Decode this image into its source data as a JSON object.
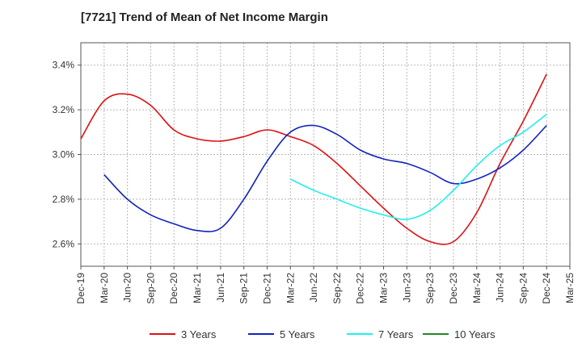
{
  "chart_data": {
    "type": "line",
    "title": "[7721]  Trend of Mean of Net Income Margin",
    "xlabel": "",
    "ylabel": "",
    "x_ticks": [
      "Dec-19",
      "Mar-20",
      "Jun-20",
      "Sep-20",
      "Dec-20",
      "Mar-21",
      "Jun-21",
      "Sep-21",
      "Dec-21",
      "Mar-22",
      "Jun-22",
      "Sep-22",
      "Dec-22",
      "Mar-23",
      "Jun-23",
      "Sep-23",
      "Dec-23",
      "Mar-24",
      "Jun-24",
      "Sep-24",
      "Dec-24",
      "Mar-25"
    ],
    "y_ticks": [
      "2.6%",
      "2.8%",
      "3.0%",
      "3.2%",
      "3.4%"
    ],
    "ylim": [
      2.5,
      3.5
    ],
    "grid": true,
    "legend_position": "bottom",
    "series": [
      {
        "name": "3 Years",
        "color": "#dd1111",
        "x": [
          "Dec-19",
          "Mar-20",
          "Jun-20",
          "Sep-20",
          "Dec-20",
          "Mar-21",
          "Jun-21",
          "Sep-21",
          "Dec-21",
          "Mar-22",
          "Jun-22",
          "Sep-22",
          "Dec-22",
          "Mar-23",
          "Jun-23",
          "Sep-23",
          "Dec-23",
          "Mar-24",
          "Jun-24",
          "Sep-24",
          "Dec-24"
        ],
        "values": [
          3.07,
          3.24,
          3.27,
          3.22,
          3.11,
          3.07,
          3.06,
          3.08,
          3.11,
          3.08,
          3.04,
          2.96,
          2.86,
          2.76,
          2.67,
          2.61,
          2.61,
          2.74,
          2.96,
          3.15,
          3.36
        ]
      },
      {
        "name": "5 Years",
        "color": "#1122bb",
        "x": [
          "Dec-19",
          "Mar-20",
          "Jun-20",
          "Sep-20",
          "Dec-20",
          "Mar-21",
          "Jun-21",
          "Sep-21",
          "Dec-21",
          "Mar-22",
          "Jun-22",
          "Sep-22",
          "Dec-22",
          "Mar-23",
          "Jun-23",
          "Sep-23",
          "Dec-23",
          "Mar-24",
          "Jun-24",
          "Sep-24",
          "Dec-24"
        ],
        "values": [
          null,
          2.91,
          2.8,
          2.73,
          2.69,
          2.66,
          2.67,
          2.8,
          2.97,
          3.1,
          3.13,
          3.09,
          3.02,
          2.98,
          2.96,
          2.92,
          2.87,
          2.89,
          2.94,
          3.02,
          3.13
        ]
      },
      {
        "name": "7 Years",
        "color": "#22eeee",
        "x": [
          "Dec-19",
          "Mar-20",
          "Jun-20",
          "Sep-20",
          "Dec-20",
          "Mar-21",
          "Jun-21",
          "Sep-21",
          "Dec-21",
          "Mar-22",
          "Jun-22",
          "Sep-22",
          "Dec-22",
          "Mar-23",
          "Jun-23",
          "Sep-23",
          "Dec-23",
          "Mar-24",
          "Jun-24",
          "Sep-24",
          "Dec-24"
        ],
        "values": [
          null,
          null,
          null,
          null,
          null,
          null,
          null,
          null,
          null,
          2.89,
          2.84,
          2.8,
          2.76,
          2.73,
          2.71,
          2.75,
          2.84,
          2.95,
          3.04,
          3.1,
          3.18
        ]
      },
      {
        "name": "10 Years",
        "color": "#228822",
        "x": [],
        "values": []
      }
    ]
  }
}
